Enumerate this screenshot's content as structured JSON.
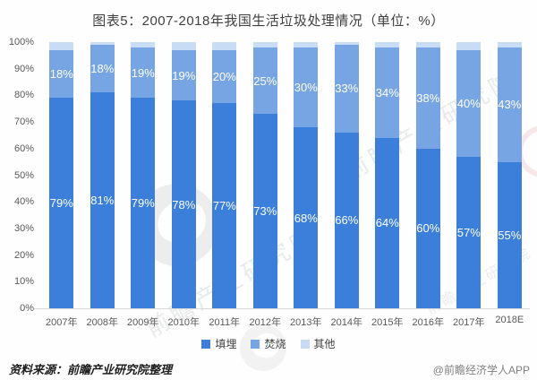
{
  "title": "图表5：2007-2018年我国生活垃圾处理情况（单位：%）",
  "chart_data": {
    "type": "bar",
    "stacked": true,
    "title": "图表5：2007-2018年我国生活垃圾处理情况（单位：%）",
    "unit": "%",
    "categories": [
      "2007年",
      "2008年",
      "2009年",
      "2010年",
      "2011年",
      "2012年",
      "2013年",
      "2014年",
      "2015年",
      "2016年",
      "2017年",
      "2018E"
    ],
    "series": [
      {
        "name": "填埋",
        "color": "#3b7fdb",
        "labels_visible": true,
        "values": [
          79,
          81,
          79,
          78,
          77,
          73,
          68,
          66,
          64,
          60,
          57,
          55
        ]
      },
      {
        "name": "焚烧",
        "color": "#77a5e4",
        "labels_visible": true,
        "values": [
          18,
          18,
          19,
          19,
          20,
          25,
          30,
          33,
          34,
          38,
          40,
          43
        ]
      },
      {
        "name": "其他",
        "color": "#c8ddf5",
        "labels_visible": false,
        "values": [
          3,
          1,
          2,
          3,
          3,
          2,
          2,
          1,
          2,
          2,
          3,
          2
        ]
      }
    ],
    "ylim": [
      0,
      100
    ],
    "y_ticks": [
      "0%",
      "10%",
      "20%",
      "30%",
      "40%",
      "50%",
      "60%",
      "70%",
      "80%",
      "90%",
      "100%"
    ],
    "grid": false,
    "legend_position": "bottom"
  },
  "footer": {
    "source": "资料来源：前瞻产业研究院整理",
    "credit": "@前瞻经济学人APP"
  },
  "watermark": {
    "text": "前瞻产业研究院",
    "logo": "qianzhan-logo-watermark"
  }
}
